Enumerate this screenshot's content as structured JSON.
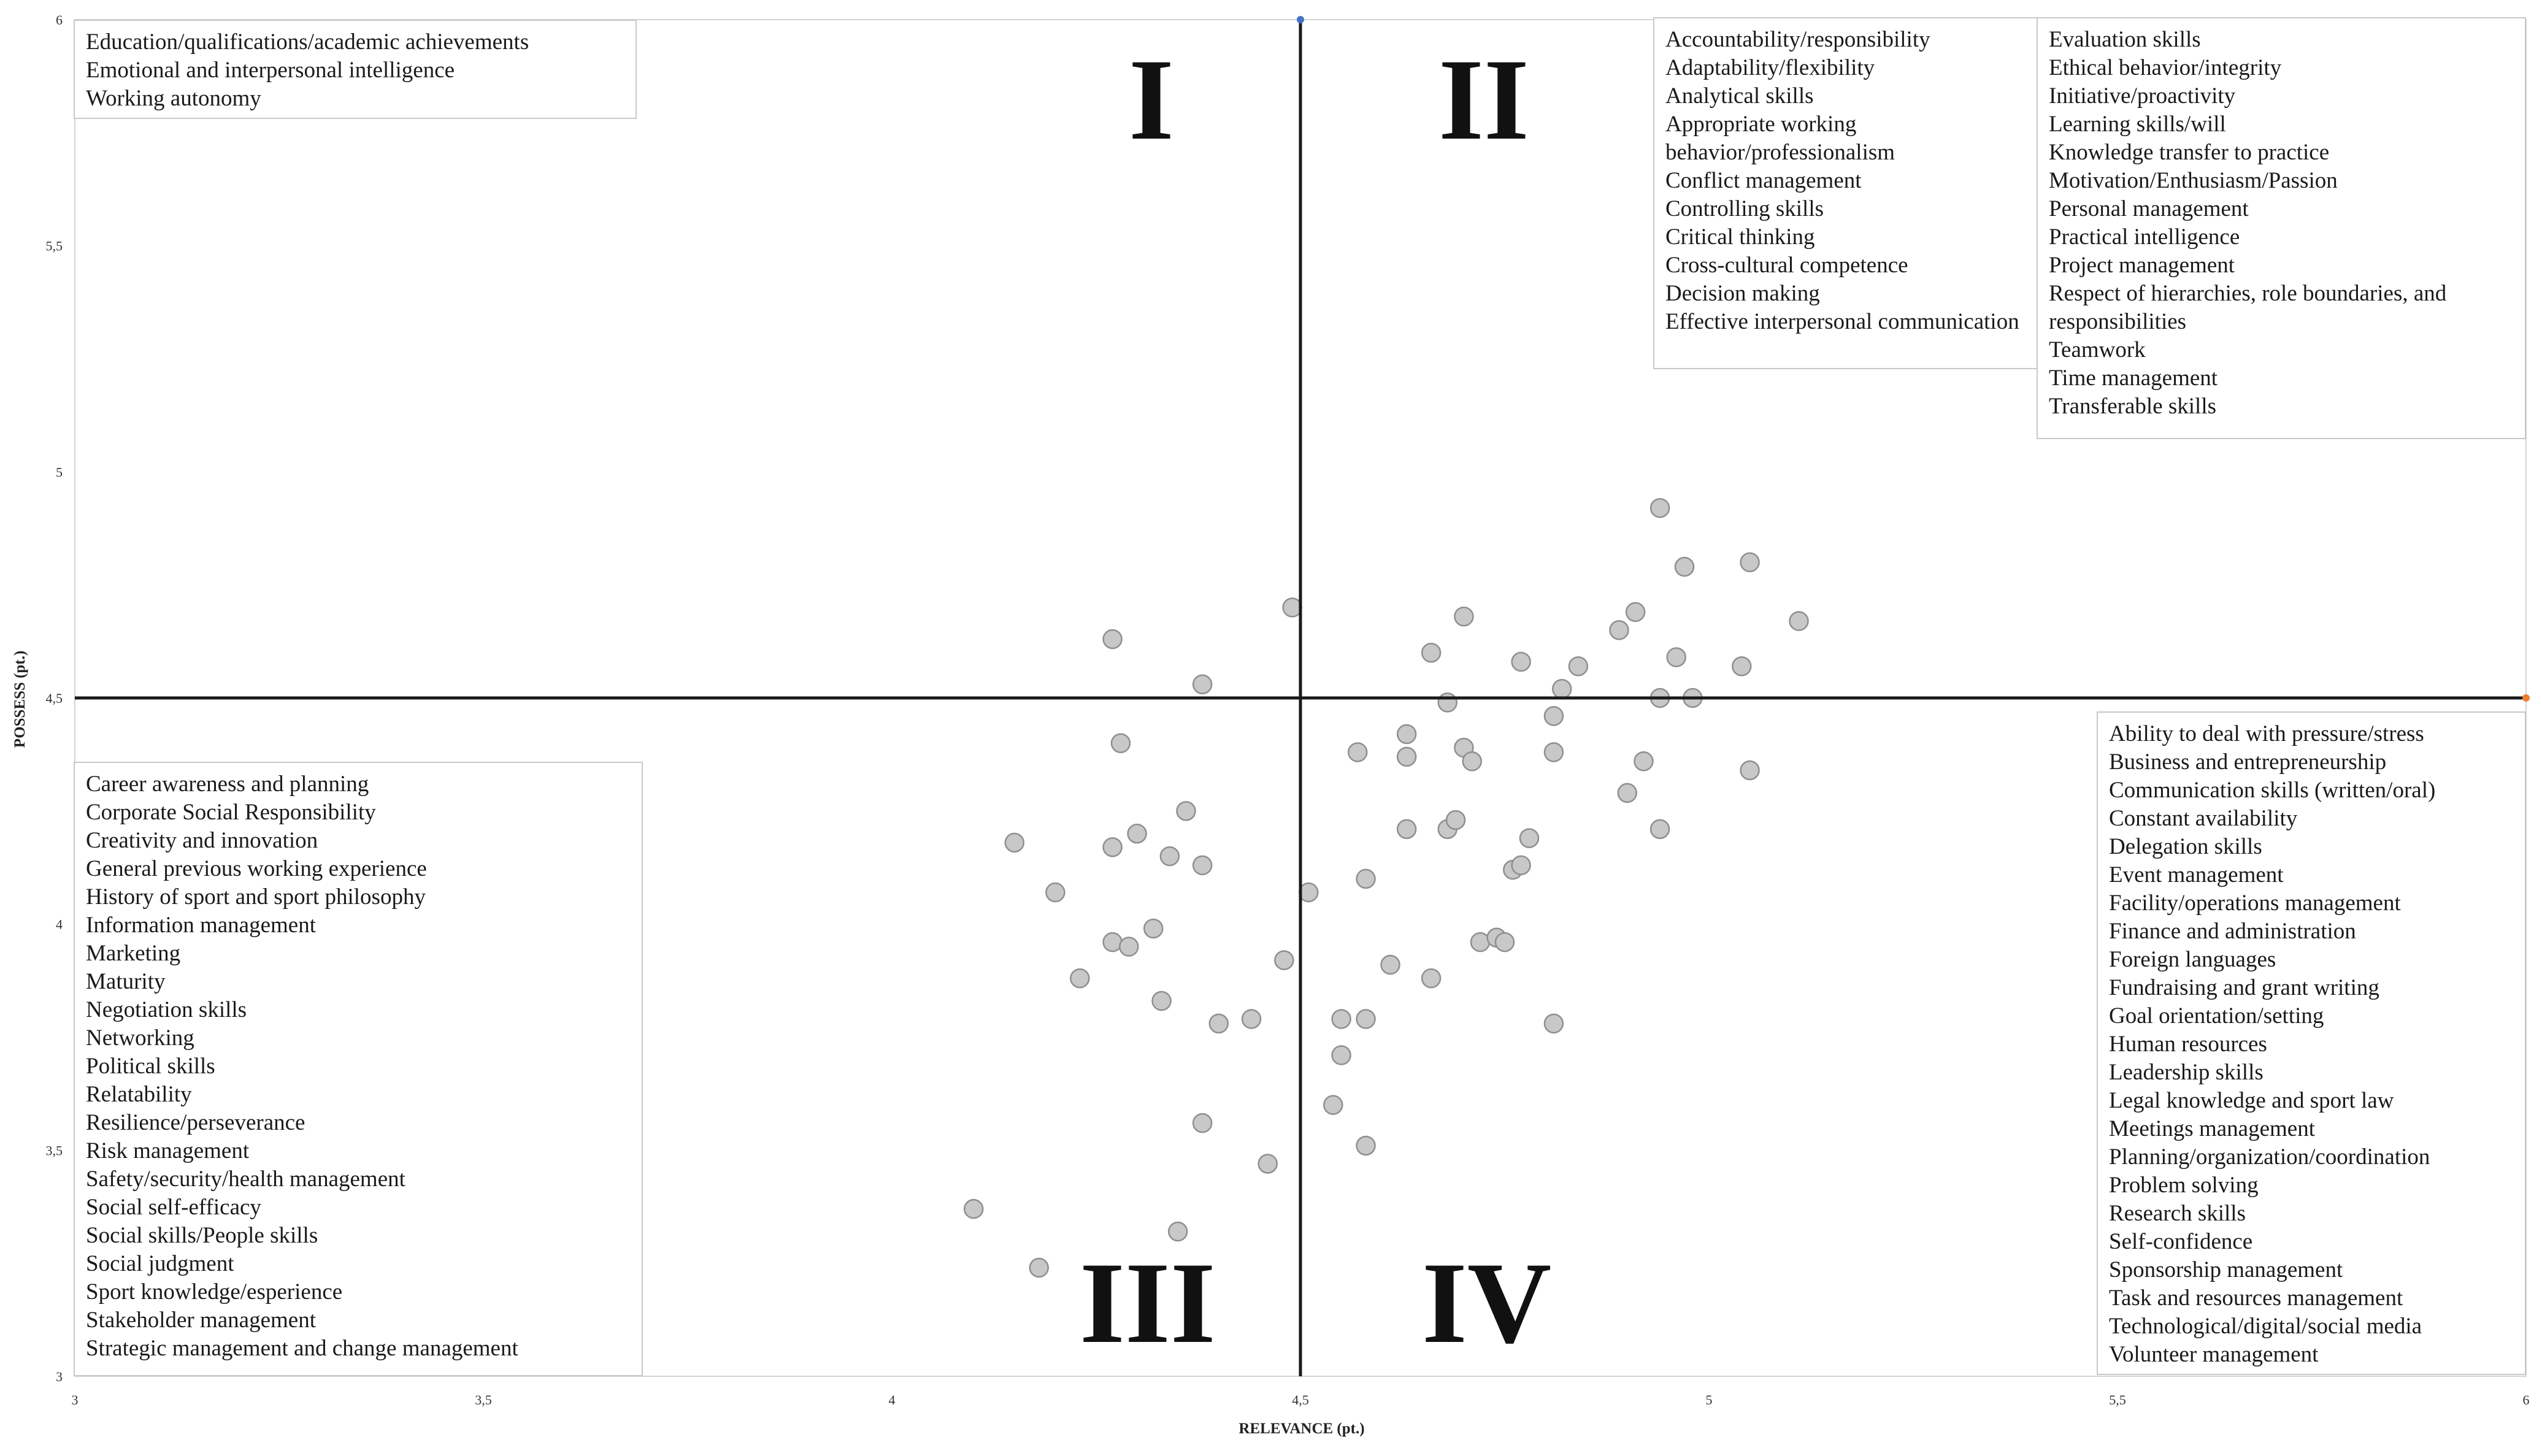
{
  "chart_data": {
    "type": "scatter",
    "xlabel": "RELEVANCE (pt.)",
    "ylabel": "POSSESS (pt.)",
    "xlim": [
      3,
      6
    ],
    "ylim": [
      3,
      6
    ],
    "x_ticks": [
      "3",
      "3,5",
      "4",
      "4,5",
      "5",
      "5,5",
      "6"
    ],
    "y_ticks": [
      "3",
      "3,5",
      "4",
      "4,5",
      "5",
      "5,5",
      "6"
    ],
    "reference_lines": {
      "x": 4.5,
      "y": 4.5
    },
    "grid": false,
    "point_color": "#c8c8c8",
    "point_edge": "#8f8f8f",
    "quadrant_labels": [
      "I",
      "II",
      "III",
      "IV"
    ],
    "quadrant_lists": {
      "q1": [
        "Education/qualifications/academic achievements",
        "Emotional and interpersonal intelligence",
        "Working autonomy"
      ],
      "q2_a": [
        "Accountability/responsibility",
        "Adaptability/flexibility",
        "Analytical skills",
        "Appropriate working behavior/professionalism",
        "Conflict management",
        "Controlling skills",
        "Critical thinking",
        "Cross-cultural competence",
        "Decision making",
        "Effective interpersonal communication"
      ],
      "q2_b": [
        "Evaluation skills",
        "Ethical behavior/integrity",
        "Initiative/proactivity",
        "Learning skills/will",
        "Knowledge transfer to practice",
        "Motivation/Enthusiasm/Passion",
        "Personal management",
        "Practical intelligence",
        "Project management",
        "Respect of hierarchies, role boundaries, and responsibilities",
        "Teamwork",
        "Time management",
        "Transferable skills"
      ],
      "q3": [
        "Career awareness and planning",
        "Corporate Social Responsibility",
        "Creativity and innovation",
        "General previous working experience",
        "History of sport and sport philosophy",
        "Information management",
        "Marketing",
        "Maturity",
        "Negotiation skills",
        "Networking",
        "Political skills",
        "Relatability",
        "Resilience/perseverance",
        "Risk management",
        "Safety/security/health management",
        "Social self-efficacy",
        "Social skills/People skills",
        "Social judgment",
        "Sport knowledge/esperience",
        "Stakeholder management",
        "Strategic management and change management"
      ],
      "q4": [
        "Ability to deal with pressure/stress",
        "Business and entrepreneurship",
        "Communication skills (written/oral)",
        "Constant availability",
        "Delegation skills",
        "Event management",
        "Facility/operations management",
        "Finance and administration",
        "Foreign languages",
        "Fundraising and grant writing",
        "Goal orientation/setting",
        "Human resources",
        "Leadership skills",
        "Legal knowledge and sport law",
        "Meetings management",
        "Planning/organization/coordination",
        "Problem solving",
        "Research skills",
        "Self-confidence",
        "Sponsorship management",
        "Task and resources management",
        "Technological/digital/social media",
        "Volunteer management"
      ]
    },
    "points": [
      [
        4.27,
        4.63
      ],
      [
        4.38,
        4.53
      ],
      [
        4.28,
        4.4
      ],
      [
        4.15,
        4.18
      ],
      [
        4.27,
        4.17
      ],
      [
        4.3,
        4.2
      ],
      [
        4.34,
        4.15
      ],
      [
        4.36,
        4.25
      ],
      [
        4.38,
        4.13
      ],
      [
        4.2,
        4.07
      ],
      [
        4.27,
        3.96
      ],
      [
        4.29,
        3.95
      ],
      [
        4.32,
        3.99
      ],
      [
        4.23,
        3.88
      ],
      [
        4.33,
        3.83
      ],
      [
        4.4,
        3.78
      ],
      [
        4.44,
        3.79
      ],
      [
        4.38,
        3.56
      ],
      [
        4.46,
        3.47
      ],
      [
        4.1,
        3.37
      ],
      [
        4.35,
        3.32
      ],
      [
        4.18,
        3.24
      ],
      [
        4.49,
        4.7
      ],
      [
        4.48,
        3.92
      ],
      [
        4.51,
        4.07
      ],
      [
        4.55,
        3.79
      ],
      [
        4.55,
        3.71
      ],
      [
        4.54,
        3.6
      ],
      [
        4.58,
        3.51
      ],
      [
        4.58,
        3.79
      ],
      [
        4.61,
        3.91
      ],
      [
        4.58,
        4.1
      ],
      [
        4.57,
        4.38
      ],
      [
        4.63,
        4.42
      ],
      [
        4.63,
        4.37
      ],
      [
        4.63,
        4.21
      ],
      [
        4.66,
        4.6
      ],
      [
        4.68,
        4.49
      ],
      [
        4.7,
        4.68
      ],
      [
        4.7,
        4.39
      ],
      [
        4.71,
        4.36
      ],
      [
        4.68,
        4.21
      ],
      [
        4.69,
        4.23
      ],
      [
        4.66,
        3.88
      ],
      [
        4.72,
        3.96
      ],
      [
        4.74,
        3.97
      ],
      [
        4.75,
        3.96
      ],
      [
        4.76,
        4.12
      ],
      [
        4.77,
        4.13
      ],
      [
        4.78,
        4.19
      ],
      [
        4.77,
        4.58
      ],
      [
        4.81,
        4.38
      ],
      [
        4.81,
        4.46
      ],
      [
        4.82,
        4.52
      ],
      [
        4.84,
        4.57
      ],
      [
        4.81,
        3.78
      ],
      [
        4.89,
        4.65
      ],
      [
        4.91,
        4.69
      ],
      [
        4.9,
        4.29
      ],
      [
        4.92,
        4.36
      ],
      [
        4.94,
        4.92
      ],
      [
        4.94,
        4.5
      ],
      [
        4.94,
        4.21
      ],
      [
        4.96,
        4.59
      ],
      [
        4.97,
        4.79
      ],
      [
        4.98,
        4.5
      ],
      [
        5.04,
        4.57
      ],
      [
        5.05,
        4.8
      ],
      [
        5.05,
        4.34
      ],
      [
        5.11,
        4.67
      ]
    ]
  }
}
